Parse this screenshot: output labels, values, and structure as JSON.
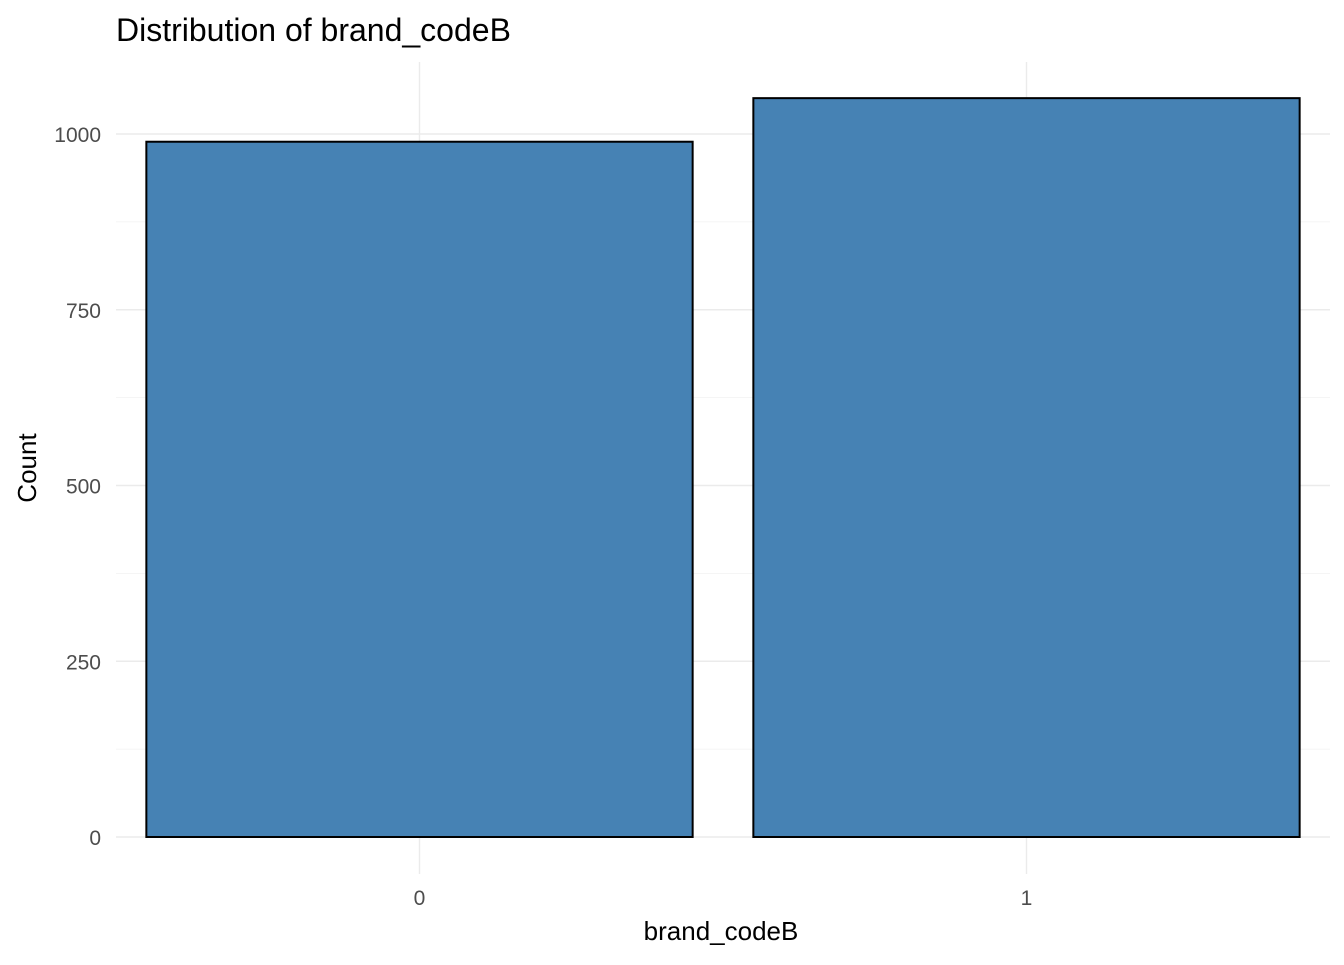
{
  "chart_data": {
    "type": "bar",
    "title": "Distribution of brand_codeB",
    "xlabel": "brand_codeB",
    "ylabel": "Count",
    "categories": [
      "0",
      "1"
    ],
    "values": [
      989,
      1051
    ],
    "ylim": [
      0,
      1100
    ],
    "yticks": [
      0,
      250,
      500,
      750,
      1000
    ],
    "ytick_labels": [
      "0",
      "250",
      "500",
      "750",
      "1000"
    ],
    "grid": true,
    "legend": "none",
    "bar_color": "#4682B4",
    "bar_outline_color": "#000000"
  }
}
